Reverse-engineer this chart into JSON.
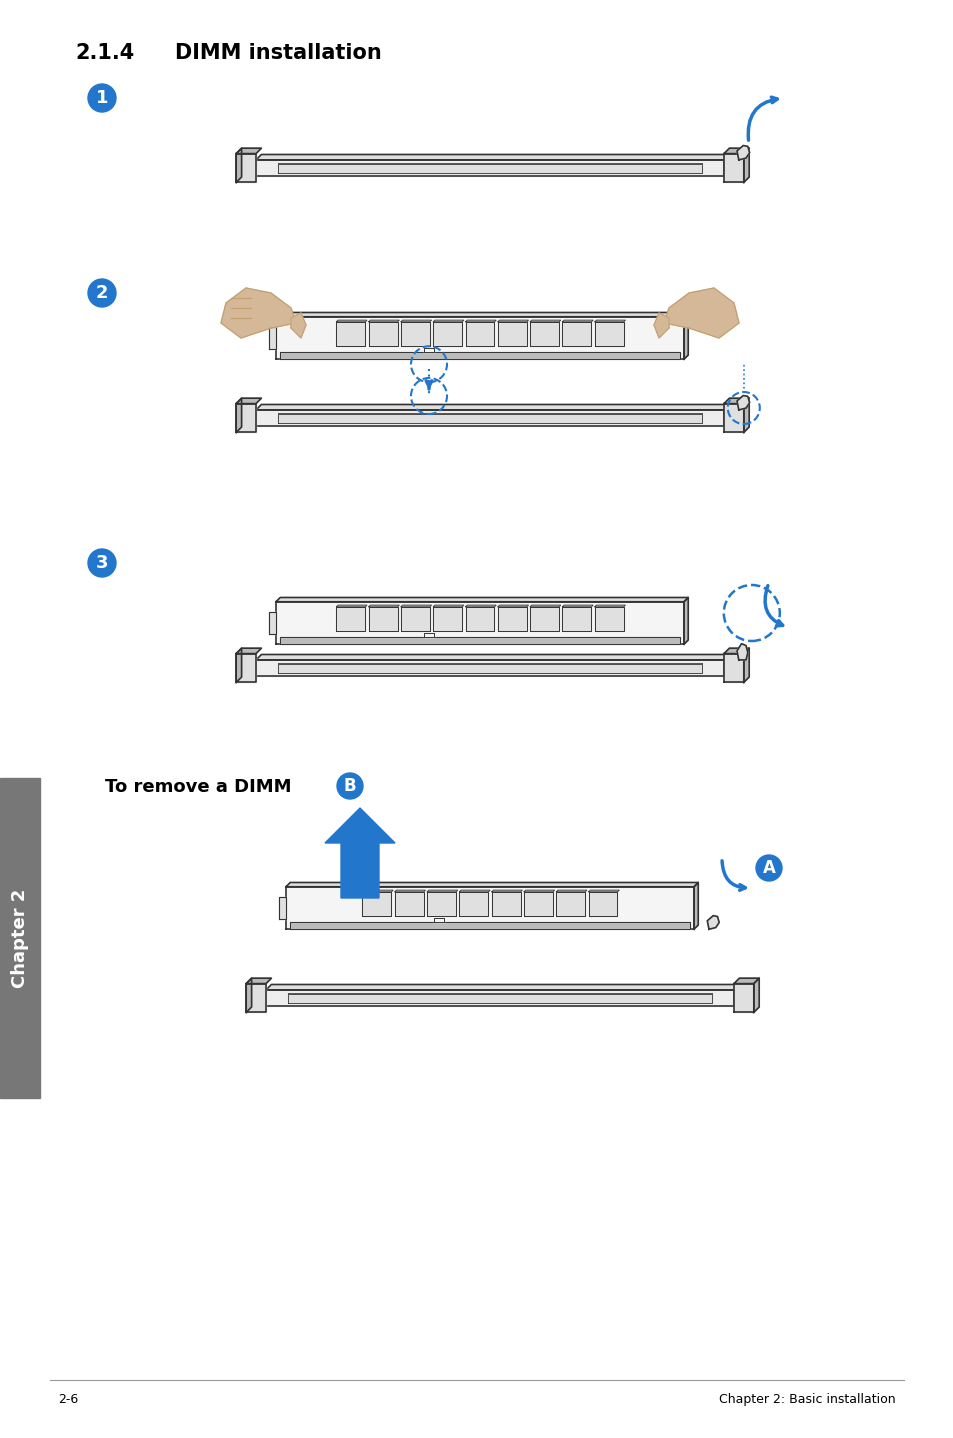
{
  "title_num": "2.1.4",
  "title_text": "DIMM installation",
  "bg_color": "#ffffff",
  "text_color": "#000000",
  "blue_color": "#2277cc",
  "line_color": "#333333",
  "light_fill": "#f5f5f5",
  "mid_fill": "#e0e0e0",
  "dark_fill": "#bbbbbb",
  "slot_fill": "#eeeeee",
  "remove_label": "To remove a DIMM",
  "footer_left": "2-6",
  "footer_right": "Chapter 2: Basic installation",
  "chapter_text": "Chapter 2",
  "fig_width": 9.54,
  "fig_height": 14.38,
  "dpi": 100
}
